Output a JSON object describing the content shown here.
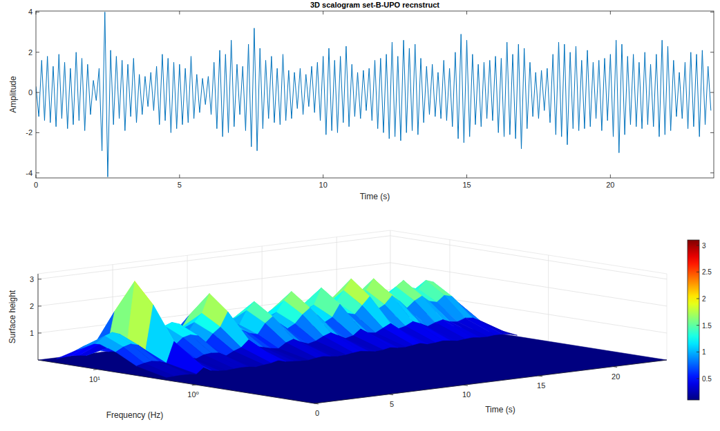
{
  "chart_data": [
    {
      "type": "line",
      "title": "3D scalogram set-B-UPO recnstruct",
      "x_label": "Time (s)",
      "y_label": "Amplitude",
      "xlim": [
        0,
        23.6
      ],
      "xticks": [
        0,
        5,
        10,
        15,
        20
      ],
      "ylim": [
        -4.25,
        4.05
      ],
      "yticks": [
        -4,
        -2,
        0,
        2,
        4
      ],
      "x": [
        0,
        0.1,
        0.2,
        0.3,
        0.4,
        0.5,
        0.6,
        0.7,
        0.8,
        0.9,
        1,
        1.1,
        1.2,
        1.3,
        1.4,
        1.5,
        1.6,
        1.7,
        1.8,
        1.9,
        2,
        2.1,
        2.2,
        2.3,
        2.4,
        2.5,
        2.6,
        2.7,
        2.8,
        2.9,
        3,
        3.1,
        3.2,
        3.3,
        3.4,
        3.5,
        3.6,
        3.7,
        3.8,
        3.9,
        4,
        4.1,
        4.2,
        4.3,
        4.4,
        4.5,
        4.6,
        4.7,
        4.8,
        4.9,
        5,
        5.1,
        5.2,
        5.3,
        5.4,
        5.5,
        5.6,
        5.7,
        5.8,
        5.9,
        6,
        6.1,
        6.2,
        6.3,
        6.4,
        6.5,
        6.6,
        6.7,
        6.8,
        6.9,
        7,
        7.1,
        7.2,
        7.3,
        7.4,
        7.5,
        7.6,
        7.7,
        7.8,
        7.9,
        8,
        8.1,
        8.2,
        8.3,
        8.4,
        8.5,
        8.6,
        8.7,
        8.8,
        8.9,
        9,
        9.1,
        9.2,
        9.3,
        9.4,
        9.5,
        9.6,
        9.7,
        9.8,
        9.9,
        10,
        10.1,
        10.2,
        10.3,
        10.4,
        10.5,
        10.6,
        10.7,
        10.8,
        10.9,
        11,
        11.1,
        11.2,
        11.3,
        11.4,
        11.5,
        11.6,
        11.7,
        11.8,
        11.9,
        12,
        12.1,
        12.2,
        12.3,
        12.4,
        12.5,
        12.6,
        12.7,
        12.8,
        12.9,
        13,
        13.1,
        13.2,
        13.3,
        13.4,
        13.5,
        13.6,
        13.7,
        13.8,
        13.9,
        14,
        14.1,
        14.2,
        14.3,
        14.4,
        14.5,
        14.6,
        14.7,
        14.8,
        14.9,
        15,
        15.1,
        15.2,
        15.3,
        15.4,
        15.5,
        15.6,
        15.7,
        15.8,
        15.9,
        16,
        16.1,
        16.2,
        16.3,
        16.4,
        16.5,
        16.6,
        16.7,
        16.8,
        16.9,
        17,
        17.1,
        17.2,
        17.3,
        17.4,
        17.5,
        17.6,
        17.7,
        17.8,
        17.9,
        18,
        18.1,
        18.2,
        18.3,
        18.4,
        18.5,
        18.6,
        18.7,
        18.8,
        18.9,
        19,
        19.1,
        19.2,
        19.3,
        19.4,
        19.5,
        19.6,
        19.7,
        19.8,
        19.9,
        20,
        20.1,
        20.2,
        20.3,
        20.4,
        20.5,
        20.6,
        20.7,
        20.8,
        20.9,
        21,
        21.1,
        21.2,
        21.3,
        21.4,
        21.5,
        21.6,
        21.7,
        21.8,
        21.9,
        22,
        22.1,
        22.2,
        22.3,
        22.4,
        22.5,
        22.6,
        22.7,
        22.8,
        22.9,
        23,
        23.1,
        23.2,
        23.3,
        23.4,
        23.5
      ],
      "series": [
        {
          "color": "#0072bd",
          "values": [
            0.3,
            -1.2,
            1.6,
            -1.4,
            1.8,
            -1.5,
            1.3,
            -1.7,
            1.9,
            -1.3,
            1.5,
            -1.8,
            1.2,
            -1.6,
            2.0,
            -1.4,
            1.7,
            -1.9,
            1.4,
            -1.1,
            0.6,
            -0.4,
            1.2,
            -2.9,
            4.0,
            -4.2,
            2.1,
            -1.6,
            1.8,
            -1.3,
            1.6,
            -1.9,
            1.4,
            -1.2,
            1.7,
            -1.5,
            0.9,
            -1.1,
            0.8,
            -0.7,
            1.0,
            -0.9,
            1.3,
            -1.6,
            1.9,
            -1.4,
            1.7,
            -2.0,
            1.5,
            -1.8,
            1.4,
            -1.6,
            1.2,
            -1.5,
            1.8,
            -1.3,
            0.9,
            -1.0,
            0.7,
            -0.6,
            0.8,
            -1.1,
            1.5,
            -1.8,
            2.1,
            -2.2,
            1.9,
            -2.0,
            2.6,
            -1.7,
            1.4,
            -1.1,
            1.3,
            -1.9,
            2.4,
            -2.7,
            3.2,
            -2.9,
            2.2,
            -1.8,
            1.6,
            -1.3,
            1.8,
            -1.5,
            1.2,
            -1.6,
            1.9,
            -1.4,
            1.1,
            -1.3,
            1.0,
            -0.8,
            1.2,
            -1.1,
            0.9,
            -0.7,
            1.3,
            -1.0,
            1.5,
            -1.4,
            1.8,
            -2.1,
            2.2,
            -1.9,
            1.6,
            -2.0,
            1.8,
            -1.5,
            2.3,
            -1.7,
            1.4,
            -1.2,
            1.0,
            -1.3,
            1.1,
            -0.9,
            1.2,
            -1.4,
            1.6,
            -1.8,
            1.7,
            -2.0,
            1.9,
            -2.3,
            2.5,
            -2.2,
            1.8,
            -2.4,
            2.6,
            -2.0,
            2.2,
            -1.9,
            2.4,
            -2.1,
            1.7,
            -1.5,
            1.3,
            -1.1,
            1.4,
            -1.2,
            1.0,
            -1.3,
            1.6,
            -1.4,
            1.2,
            -1.7,
            2.0,
            -2.3,
            2.9,
            -2.5,
            2.6,
            -2.2,
            1.9,
            -1.6,
            1.4,
            -1.7,
            1.5,
            -1.3,
            1.6,
            -1.4,
            1.8,
            -2.0,
            1.7,
            -2.2,
            2.5,
            -2.1,
            1.9,
            -2.3,
            2.4,
            -2.8,
            2.2,
            -1.8,
            1.5,
            -1.2,
            1.0,
            -1.3,
            1.1,
            -0.9,
            1.2,
            -1.5,
            1.9,
            -2.1,
            2.5,
            -2.2,
            2.4,
            -2.6,
            2.0,
            -1.8,
            2.3,
            -1.9,
            1.6,
            -1.8,
            2.1,
            -1.7,
            1.5,
            -1.3,
            1.6,
            -1.9,
            1.7,
            -1.4,
            1.9,
            -2.2,
            2.6,
            -3.0,
            2.4,
            -2.1,
            1.8,
            -1.6,
            1.9,
            -1.7,
            1.5,
            -1.8,
            2.0,
            -1.6,
            1.4,
            -1.7,
            1.9,
            -2.2,
            2.6,
            -2.1,
            2.3,
            -1.9,
            1.6,
            -1.2,
            1.0,
            -1.3,
            1.5,
            -1.8,
            2.0,
            -1.7,
            1.9,
            -2.2,
            2.1,
            -1.6,
            1.3,
            -0.9
          ]
        }
      ]
    },
    {
      "type": "surface",
      "x_label": "Time (s)",
      "y_label": "Frequency (Hz)",
      "z_label": "Surface height",
      "xlim": [
        0,
        23.6
      ],
      "xticks": [
        0,
        5,
        10,
        15,
        20
      ],
      "ylim": [
        0.063,
        40
      ],
      "yticks": [
        {
          "value": 1,
          "label": "10⁰"
        },
        {
          "value": 10,
          "label": "10¹"
        }
      ],
      "log": "y",
      "zlim": [
        0,
        3.2
      ],
      "zticks": [
        1,
        2,
        3
      ],
      "grid": true,
      "x": [
        0,
        0.5,
        1,
        1.5,
        2,
        2.5,
        3,
        3.5,
        4,
        4.5,
        5,
        5.5,
        6,
        6.5,
        7,
        7.5,
        8,
        8.5,
        9,
        9.5,
        10,
        10.5,
        11,
        11.5,
        12,
        12.5,
        13,
        13.5,
        14,
        14.5,
        15,
        15.5,
        16,
        16.5,
        17,
        17.5,
        18,
        18.5,
        19,
        19.5,
        20,
        20.5,
        21,
        21.5,
        22,
        22.5,
        23,
        23.5
      ],
      "y": [
        2,
        4,
        6.5,
        10,
        16,
        26
      ],
      "z": [
        [
          0.1,
          0.12,
          0.13,
          0.12,
          0.09,
          0.31,
          0.16,
          0.12,
          0.1,
          0.12,
          0.14,
          0.13,
          0.09,
          0.13,
          0.16,
          0.23,
          0.15,
          0.13,
          0.11,
          0.1,
          0.15,
          0.18,
          0.14,
          0.11,
          0.13,
          0.17,
          0.2,
          0.16,
          0.12,
          0.14,
          0.2,
          0.15,
          0.14,
          0.18,
          0.22,
          0.15,
          0.17,
          0.21,
          0.18,
          0.14,
          0.17,
          0.19,
          0.16,
          0.15,
          0.18,
          0.17,
          0.13,
          0.06
        ],
        [
          0.35,
          0.42,
          0.46,
          0.42,
          0.32,
          1.09,
          0.56,
          0.42,
          0.35,
          0.46,
          0.49,
          0.46,
          0.32,
          0.46,
          0.56,
          0.81,
          0.53,
          0.46,
          0.39,
          0.35,
          0.53,
          0.63,
          0.49,
          0.39,
          0.46,
          0.6,
          0.7,
          0.56,
          0.42,
          0.49,
          0.7,
          0.53,
          0.49,
          0.63,
          0.77,
          0.53,
          0.6,
          0.74,
          0.63,
          0.49,
          0.6,
          0.67,
          0.56,
          0.53,
          0.63,
          0.6,
          0.46,
          0.21
        ],
        [
          0.75,
          0.9,
          0.98,
          0.9,
          0.68,
          2.33,
          1.2,
          0.9,
          0.75,
          0.98,
          1.05,
          0.98,
          0.68,
          0.98,
          1.2,
          1.73,
          1.13,
          0.98,
          0.83,
          0.75,
          1.13,
          1.35,
          1.05,
          0.83,
          0.98,
          1.28,
          1.5,
          1.2,
          0.9,
          1.05,
          1.5,
          1.13,
          1.05,
          1.35,
          1.65,
          1.13,
          1.28,
          1.58,
          1.35,
          1.05,
          1.28,
          1.43,
          1.2,
          1.13,
          1.35,
          1.28,
          0.98,
          0.45
        ],
        [
          1.0,
          1.2,
          1.3,
          1.2,
          0.9,
          3.1,
          1.6,
          1.2,
          1.0,
          1.3,
          1.4,
          1.3,
          0.9,
          1.3,
          1.6,
          2.3,
          1.5,
          1.3,
          1.1,
          1.0,
          1.5,
          1.8,
          1.4,
          1.1,
          1.3,
          1.7,
          2.0,
          1.6,
          1.2,
          1.4,
          2.0,
          1.5,
          1.4,
          1.8,
          2.2,
          1.5,
          1.7,
          2.1,
          1.8,
          1.4,
          1.7,
          1.9,
          1.6,
          1.5,
          1.8,
          1.7,
          1.3,
          0.6
        ],
        [
          0.6,
          0.72,
          0.78,
          0.72,
          0.54,
          1.86,
          0.96,
          0.72,
          0.6,
          0.78,
          0.84,
          0.78,
          0.54,
          0.78,
          0.96,
          1.38,
          0.9,
          0.78,
          0.66,
          0.6,
          0.9,
          1.08,
          0.84,
          0.66,
          0.78,
          1.02,
          1.2,
          0.96,
          0.72,
          0.84,
          1.2,
          0.9,
          0.84,
          1.08,
          1.32,
          0.9,
          1.02,
          1.26,
          1.08,
          0.84,
          1.02,
          1.14,
          0.96,
          0.9,
          1.08,
          1.02,
          0.78,
          0.36
        ],
        [
          0.15,
          0.18,
          0.2,
          0.18,
          0.14,
          0.47,
          0.24,
          0.18,
          0.15,
          0.2,
          0.21,
          0.2,
          0.14,
          0.2,
          0.24,
          0.35,
          0.23,
          0.2,
          0.17,
          0.15,
          0.23,
          0.27,
          0.21,
          0.17,
          0.2,
          0.26,
          0.3,
          0.24,
          0.18,
          0.21,
          0.3,
          0.23,
          0.21,
          0.27,
          0.33,
          0.23,
          0.26,
          0.32,
          0.27,
          0.21,
          0.26,
          0.29,
          0.24,
          0.23,
          0.27,
          0.26,
          0.2,
          0.09
        ]
      ],
      "colorbar_lim": [
        0.1,
        3.1
      ],
      "colorbar_ticks": [
        0.5,
        1,
        1.5,
        2,
        2.5,
        3
      ]
    }
  ]
}
